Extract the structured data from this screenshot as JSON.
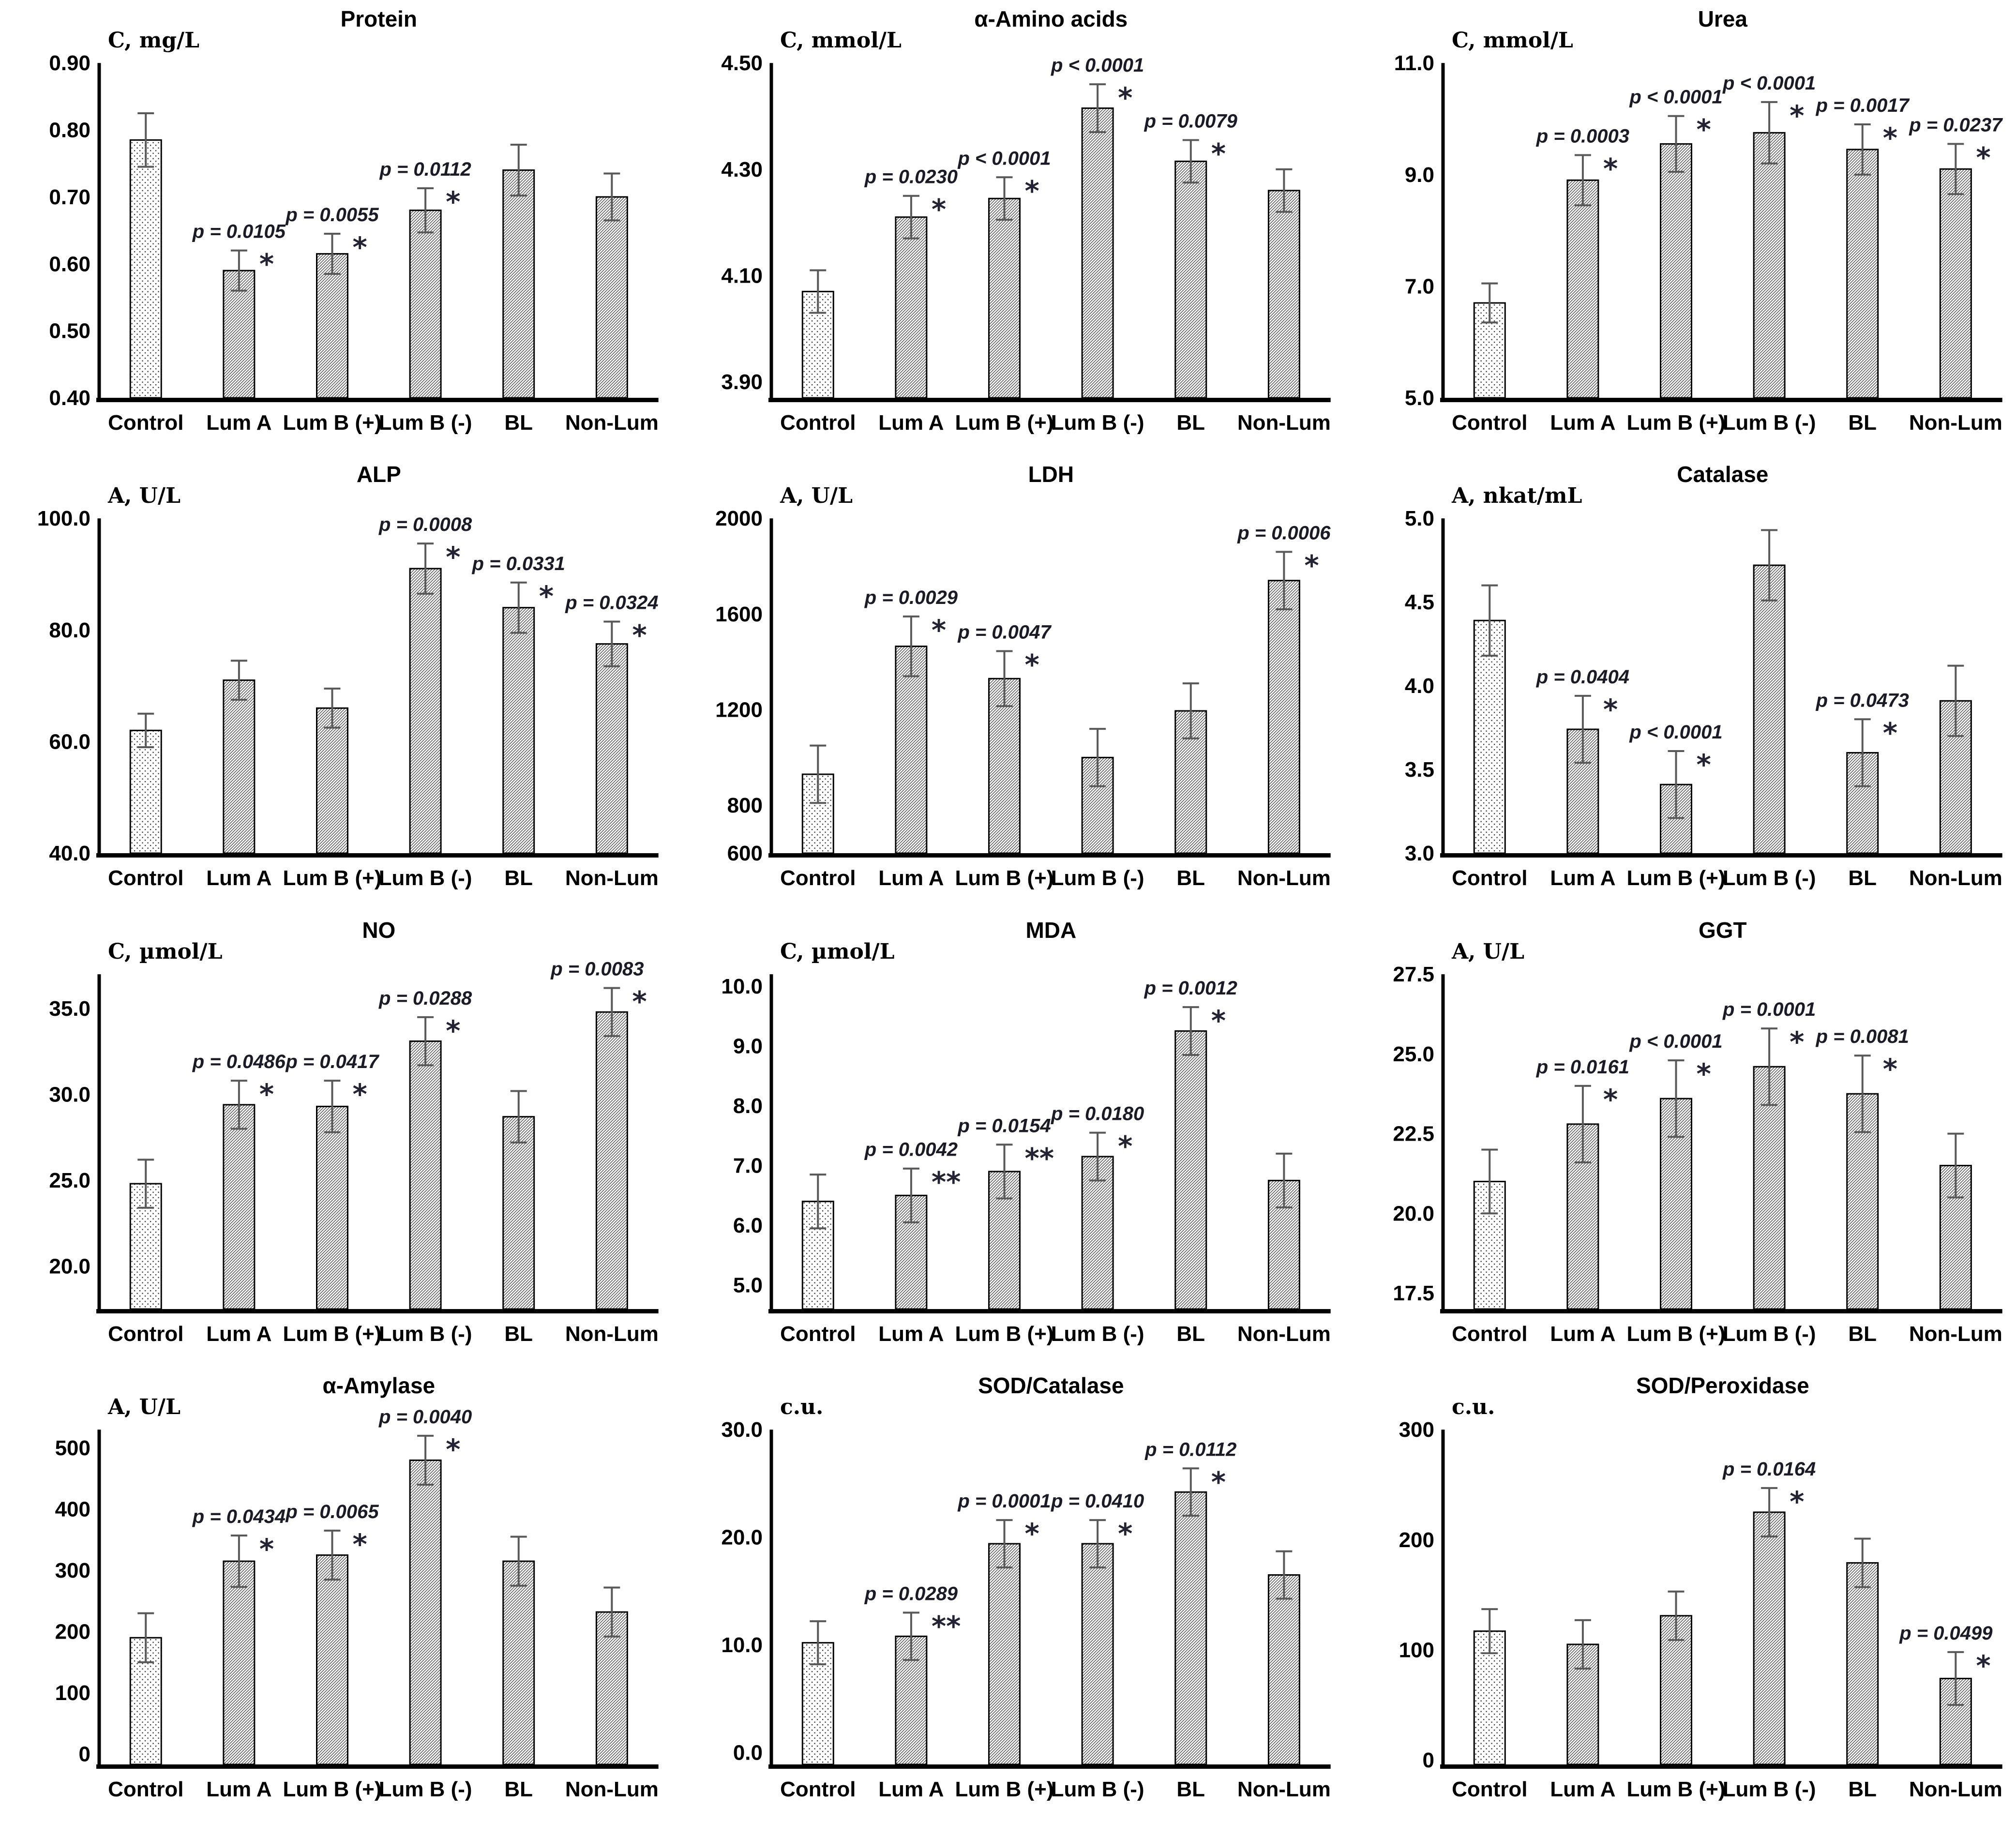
{
  "figure": {
    "background": "#ffffff",
    "categories": [
      "Control",
      "Lum A",
      "Lum B (+)",
      "Lum B (-)",
      "BL",
      "Non-Lum"
    ],
    "bar_styles": [
      "dotted",
      "hatched",
      "hatched",
      "hatched",
      "hatched",
      "hatched"
    ],
    "palette": {
      "bar_outline": "#000000",
      "bar_fill_background": "#ffffff",
      "hatch_line": "#4f4f4f",
      "dot": "#2e2e2e",
      "axis": "#000000",
      "error_bar": "#595959",
      "text": "#000000",
      "p_text": "#1b1b26",
      "star": "#232334"
    }
  },
  "chart_data": [
    {
      "type": "bar",
      "title": "Protein",
      "ylabel": "C, mg/L",
      "categories": [
        "Control",
        "Lum A",
        "Lum B (+)",
        "Lum B (-)",
        "BL",
        "Non-Lum"
      ],
      "values": [
        0.785,
        0.59,
        0.615,
        0.68,
        0.74,
        0.7
      ],
      "errors": [
        0.04,
        0.03,
        0.03,
        0.033,
        0.038,
        0.035
      ],
      "ylim": [
        0.4,
        0.9
      ],
      "ytick_values": [
        0.4,
        0.5,
        0.6,
        0.7,
        0.8,
        0.9
      ],
      "ytick_labels": [
        "0.40",
        "0.50",
        "0.60",
        "0.70",
        "0.80",
        "0.90"
      ],
      "grid": false,
      "legend": "none",
      "annotations": [
        {
          "index": 1,
          "p": "p = 0.0105",
          "stars": "*"
        },
        {
          "index": 2,
          "p": "p = 0.0055",
          "stars": "*"
        },
        {
          "index": 3,
          "p": "p = 0.0112",
          "stars": "*"
        }
      ]
    },
    {
      "type": "bar",
      "title": "α-Amino acids",
      "ylabel": "C, mmol/L",
      "categories": [
        "Control",
        "Lum A",
        "Lum B (+)",
        "Lum B (-)",
        "BL",
        "Non-Lum"
      ],
      "values": [
        4.07,
        4.21,
        4.245,
        4.415,
        4.315,
        4.26
      ],
      "errors": [
        0.04,
        0.04,
        0.04,
        0.045,
        0.04,
        0.04
      ],
      "ylim": [
        3.87,
        4.5
      ],
      "ytick_values": [
        3.9,
        4.1,
        4.3,
        4.5
      ],
      "ytick_labels": [
        "3.90",
        "4.10",
        "4.30",
        "4.50"
      ],
      "grid": false,
      "legend": "none",
      "annotations": [
        {
          "index": 1,
          "p": "p = 0.0230",
          "stars": "*"
        },
        {
          "index": 2,
          "p": "p < 0.0001",
          "stars": "*"
        },
        {
          "index": 3,
          "p": "p < 0.0001",
          "stars": "*"
        },
        {
          "index": 4,
          "p": "p = 0.0079",
          "stars": "*"
        }
      ]
    },
    {
      "type": "bar",
      "title": "Urea",
      "ylabel": "C, mmol/L",
      "categories": [
        "Control",
        "Lum A",
        "Lum B (+)",
        "Lum B (-)",
        "BL",
        "Non-Lum"
      ],
      "values": [
        6.7,
        8.9,
        9.55,
        9.75,
        9.45,
        9.1
      ],
      "errors": [
        0.35,
        0.45,
        0.5,
        0.55,
        0.45,
        0.45
      ],
      "ylim": [
        5.0,
        11.0
      ],
      "ytick_values": [
        5.0,
        7.0,
        9.0,
        11.0
      ],
      "ytick_labels": [
        "5.0",
        "7.0",
        "9.0",
        "11.0"
      ],
      "grid": false,
      "legend": "none",
      "annotations": [
        {
          "index": 1,
          "p": "p = 0.0003",
          "stars": "*"
        },
        {
          "index": 2,
          "p": "p < 0.0001",
          "stars": "*"
        },
        {
          "index": 3,
          "p": "p < 0.0001",
          "stars": "*"
        },
        {
          "index": 4,
          "p": "p = 0.0017",
          "stars": "*"
        },
        {
          "index": 5,
          "p": "p = 0.0237",
          "stars": "*"
        }
      ]
    },
    {
      "type": "bar",
      "title": "ALP",
      "ylabel": "A, U/L",
      "categories": [
        "Control",
        "Lum A",
        "Lum B (+)",
        "Lum B (-)",
        "BL",
        "Non-Lum"
      ],
      "values": [
        62,
        71,
        66,
        91,
        84,
        77.5
      ],
      "errors": [
        3,
        3.5,
        3.5,
        4.5,
        4.5,
        4
      ],
      "ylim": [
        40,
        100
      ],
      "ytick_values": [
        40,
        60,
        80,
        100
      ],
      "ytick_labels": [
        "40.0",
        "60.0",
        "80.0",
        "100.0"
      ],
      "grid": false,
      "legend": "none",
      "annotations": [
        {
          "index": 3,
          "p": "p = 0.0008",
          "stars": "*"
        },
        {
          "index": 4,
          "p": "p = 0.0331",
          "stars": "*"
        },
        {
          "index": 5,
          "p": "p = 0.0324",
          "stars": "*"
        }
      ]
    },
    {
      "type": "bar",
      "title": "LDH",
      "ylabel": "A, U/L",
      "categories": [
        "Control",
        "Lum A",
        "Lum B (+)",
        "Lum B (-)",
        "BL",
        "Non-Lum"
      ],
      "values": [
        930,
        1465,
        1330,
        1000,
        1195,
        1740
      ],
      "errors": [
        120,
        125,
        115,
        120,
        115,
        120
      ],
      "ylim": [
        600,
        2000
      ],
      "ytick_values": [
        600,
        800,
        1200,
        1600,
        2000
      ],
      "ytick_labels": [
        "600",
        "800",
        "1200",
        "1600",
        "2000"
      ],
      "grid": false,
      "legend": "none",
      "annotations": [
        {
          "index": 1,
          "p": "p = 0.0029",
          "stars": "*"
        },
        {
          "index": 2,
          "p": "p = 0.0047",
          "stars": "*"
        },
        {
          "index": 5,
          "p": "p = 0.0006",
          "stars": "*"
        }
      ]
    },
    {
      "type": "bar",
      "title": "Catalase",
      "ylabel": "A, nkat/mL",
      "categories": [
        "Control",
        "Lum A",
        "Lum B (+)",
        "Lum B (-)",
        "BL",
        "Non-Lum"
      ],
      "values": [
        4.39,
        3.74,
        3.41,
        4.72,
        3.6,
        3.91
      ],
      "errors": [
        0.21,
        0.2,
        0.2,
        0.21,
        0.2,
        0.21
      ],
      "ylim": [
        3.0,
        5.0
      ],
      "ytick_values": [
        3.0,
        3.5,
        4.0,
        4.5,
        5.0
      ],
      "ytick_labels": [
        "3.0",
        "3.5",
        "4.0",
        "4.5",
        "5.0"
      ],
      "grid": false,
      "legend": "none",
      "annotations": [
        {
          "index": 1,
          "p": "p = 0.0404",
          "stars": "*"
        },
        {
          "index": 2,
          "p": "p < 0.0001",
          "stars": "*"
        },
        {
          "index": 4,
          "p": "p = 0.0473",
          "stars": "*"
        }
      ]
    },
    {
      "type": "bar",
      "title": "NO",
      "ylabel": "C, µmol/L",
      "categories": [
        "Control",
        "Lum A",
        "Lum B (+)",
        "Lum B (-)",
        "BL",
        "Non-Lum"
      ],
      "values": [
        24.8,
        29.4,
        29.3,
        33.1,
        28.7,
        34.8
      ],
      "errors": [
        1.4,
        1.4,
        1.5,
        1.4,
        1.5,
        1.4
      ],
      "ylim": [
        17.5,
        37.0
      ],
      "ytick_values": [
        20.0,
        25.0,
        30.0,
        35.0
      ],
      "ytick_labels": [
        "20.0",
        "25.0",
        "30.0",
        "35.0"
      ],
      "grid": false,
      "legend": "none",
      "annotations": [
        {
          "index": 1,
          "p": "p = 0.0486",
          "stars": "*"
        },
        {
          "index": 2,
          "p": "p = 0.0417",
          "stars": "*"
        },
        {
          "index": 3,
          "p": "p = 0.0288",
          "stars": "*"
        },
        {
          "index": 5,
          "p": "p = 0.0083",
          "stars": "*",
          "dx": -30
        }
      ]
    },
    {
      "type": "bar",
      "title": "MDA",
      "ylabel": "C, µmol/L",
      "categories": [
        "Control",
        "Lum A",
        "Lum B (+)",
        "Lum B (-)",
        "BL",
        "Non-Lum"
      ],
      "values": [
        6.4,
        6.5,
        6.9,
        7.15,
        9.25,
        6.75
      ],
      "errors": [
        0.45,
        0.45,
        0.45,
        0.4,
        0.4,
        0.45
      ],
      "ylim": [
        4.6,
        10.2
      ],
      "ytick_values": [
        5.0,
        6.0,
        7.0,
        8.0,
        9.0,
        10.0
      ],
      "ytick_labels": [
        "5.0",
        "6.0",
        "7.0",
        "8.0",
        "9.0",
        "10.0"
      ],
      "grid": false,
      "legend": "none",
      "annotations": [
        {
          "index": 1,
          "p": "p = 0.0042",
          "stars": "**"
        },
        {
          "index": 2,
          "p": "p = 0.0154",
          "stars": "**"
        },
        {
          "index": 3,
          "p": "p = 0.0180",
          "stars": "*"
        },
        {
          "index": 4,
          "p": "p = 0.0012",
          "stars": "*"
        }
      ]
    },
    {
      "type": "bar",
      "title": "GGT",
      "ylabel": "A, U/L",
      "categories": [
        "Control",
        "Lum A",
        "Lum B (+)",
        "Lum B (-)",
        "BL",
        "Non-Lum"
      ],
      "values": [
        21.0,
        22.8,
        23.6,
        24.6,
        23.75,
        21.5
      ],
      "errors": [
        1.0,
        1.2,
        1.2,
        1.2,
        1.2,
        1.0
      ],
      "ylim": [
        17.0,
        27.5
      ],
      "ytick_values": [
        17.5,
        20.0,
        22.5,
        25.0,
        27.5
      ],
      "ytick_labels": [
        "17.5",
        "20.0",
        "22.5",
        "25.0",
        "27.5"
      ],
      "grid": false,
      "legend": "none",
      "annotations": [
        {
          "index": 1,
          "p": "p = 0.0161",
          "stars": "*"
        },
        {
          "index": 2,
          "p": "p < 0.0001",
          "stars": "*"
        },
        {
          "index": 3,
          "p": "p = 0.0001",
          "stars": "*"
        },
        {
          "index": 4,
          "p": "p = 0.0081",
          "stars": "*"
        }
      ]
    },
    {
      "type": "bar",
      "title": "α-Amylase",
      "ylabel": "A, U/L",
      "categories": [
        "Control",
        "Lum A",
        "Lum B (+)",
        "Lum B (-)",
        "BL",
        "Non-Lum"
      ],
      "values": [
        190,
        315,
        325,
        480,
        315,
        232
      ],
      "errors": [
        40,
        42,
        40,
        40,
        40,
        40
      ],
      "ylim": [
        -17,
        530
      ],
      "ytick_values": [
        0,
        100,
        200,
        300,
        400,
        500
      ],
      "ytick_labels": [
        "0",
        "100",
        "200",
        "300",
        "400",
        "500"
      ],
      "grid": false,
      "legend": "none",
      "annotations": [
        {
          "index": 1,
          "p": "p = 0.0434",
          "stars": "*"
        },
        {
          "index": 2,
          "p": "p = 0.0065",
          "stars": "*"
        },
        {
          "index": 3,
          "p": "p = 0.0040",
          "stars": "*"
        }
      ]
    },
    {
      "type": "bar",
      "title": "SOD/Catalase",
      "ylabel": "c.u.",
      "categories": [
        "Control",
        "Lum A",
        "Lum B (+)",
        "Lum B (-)",
        "BL",
        "Non-Lum"
      ],
      "values": [
        10.2,
        10.8,
        19.4,
        19.4,
        24.2,
        16.5
      ],
      "errors": [
        2.0,
        2.2,
        2.2,
        2.2,
        2.2,
        2.2
      ],
      "ylim": [
        -1.1,
        30.0
      ],
      "ytick_values": [
        0.0,
        10.0,
        20.0,
        30.0
      ],
      "ytick_labels": [
        "0.0",
        "10.0",
        "20.0",
        "30.0"
      ],
      "grid": false,
      "legend": "none",
      "annotations": [
        {
          "index": 1,
          "p": "p = 0.0289",
          "stars": "**"
        },
        {
          "index": 2,
          "p": "p = 0.0001",
          "stars": "*"
        },
        {
          "index": 3,
          "p": "p = 0.0410",
          "stars": "*"
        },
        {
          "index": 4,
          "p": "p = 0.0112",
          "stars": "*"
        }
      ]
    },
    {
      "type": "bar",
      "title": "SOD/Peroxidase",
      "ylabel": "c.u.",
      "categories": [
        "Control",
        "Lum A",
        "Lum B (+)",
        "Lum B (-)",
        "BL",
        "Non-Lum"
      ],
      "values": [
        117,
        105,
        131,
        225,
        179,
        74
      ],
      "errors": [
        20,
        22,
        22,
        22,
        22,
        24
      ],
      "ylim": [
        -4,
        300
      ],
      "ytick_values": [
        0,
        100,
        200,
        300
      ],
      "ytick_labels": [
        "0",
        "100",
        "200",
        "300"
      ],
      "grid": false,
      "legend": "none",
      "annotations": [
        {
          "index": 3,
          "p": "p = 0.0164",
          "stars": "*"
        },
        {
          "index": 5,
          "p": "p = 0.0499",
          "stars": "*",
          "dx": -20
        }
      ]
    }
  ]
}
